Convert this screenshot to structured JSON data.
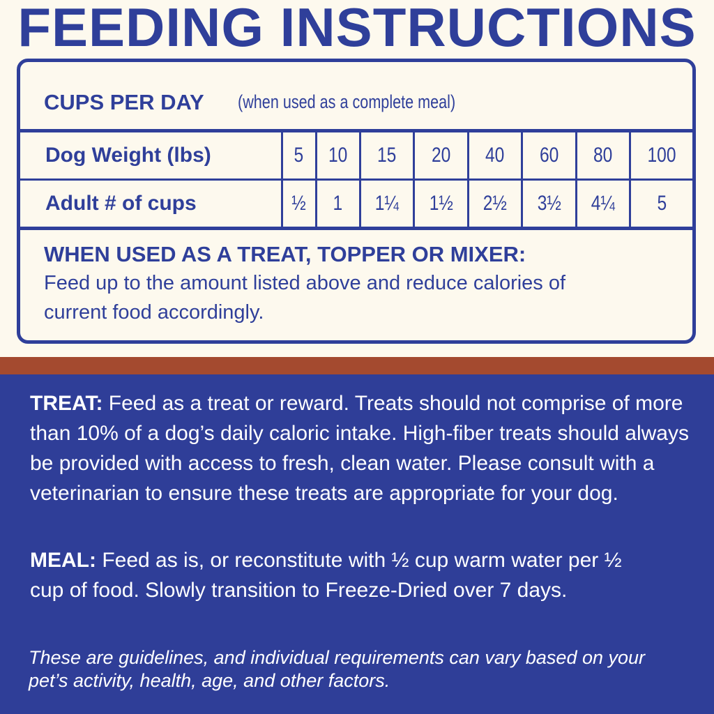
{
  "title": "FEEDING INSTRUCTIONS",
  "cups_per_day": {
    "heading": "CUPS PER DAY",
    "subheading": "(when used as a complete meal)"
  },
  "table": {
    "rows": [
      {
        "label": "Dog Weight (lbs)",
        "values": [
          "5",
          "10",
          "15",
          "20",
          "40",
          "60",
          "80",
          "100"
        ]
      },
      {
        "label": "Adult # of cups",
        "values": [
          "½",
          "1",
          "1¼",
          "1½",
          "2½",
          "3½",
          "4¼",
          "5"
        ]
      }
    ]
  },
  "treat_topper": {
    "heading": "WHEN USED AS A TREAT, TOPPER OR MIXER:",
    "text": "Feed up to the amount listed above and reduce calories of current food accordingly."
  },
  "treat": {
    "label": "TREAT:",
    "text": " Feed as a treat or reward. Treats should not comprise of more than 10% of a dog’s daily caloric intake. High-fiber treats should always be provided with access to fresh, clean water. Please consult with a veterinarian to ensure these treats are appropriate for your dog."
  },
  "meal": {
    "label": "MEAL:",
    "text": " Feed as is, or reconstitute with ½ cup warm water per ½ cup of food. Slowly transition to Freeze-Dried over 7 days."
  },
  "note": "These are guidelines, and individual requirements can vary based on your pet’s activity, health, age, and other factors.",
  "colors": {
    "blue": "#2f3f9a",
    "cream": "#fdf9ee",
    "rust": "#a44a2f"
  }
}
